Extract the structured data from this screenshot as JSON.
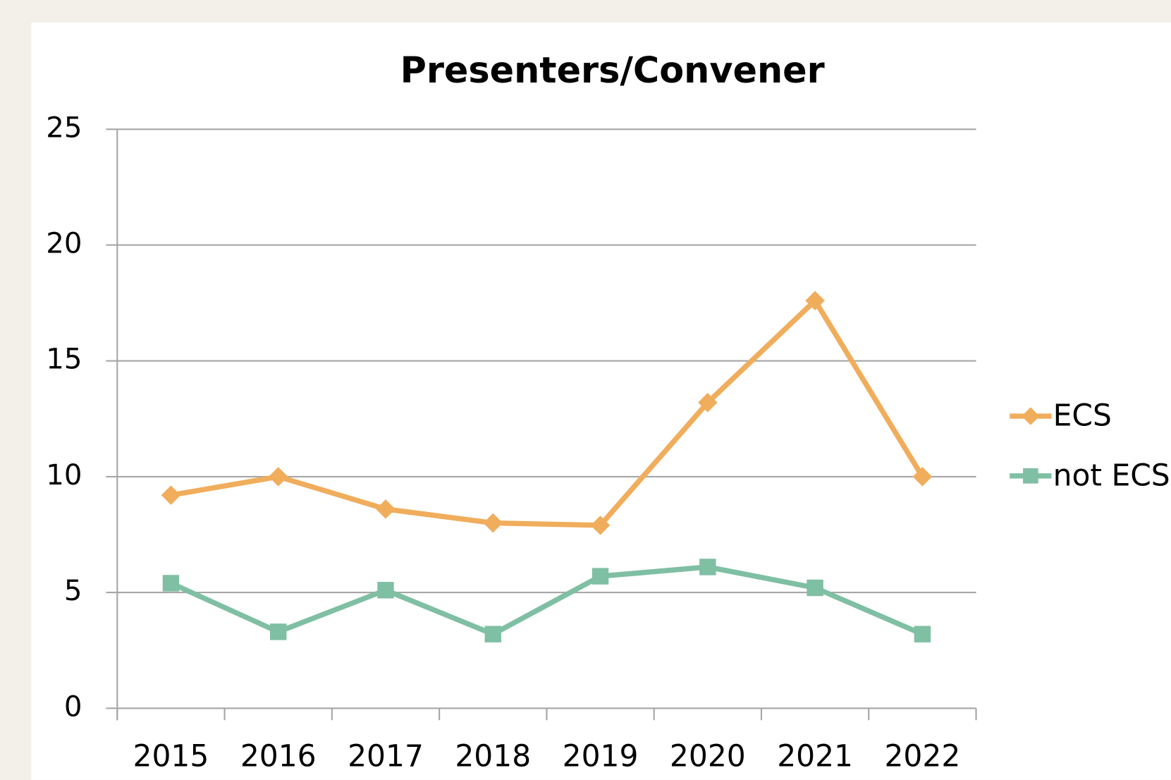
{
  "chart_data": {
    "type": "line",
    "title": "Presenters/Convener",
    "categories": [
      "2015",
      "2016",
      "2017",
      "2018",
      "2019",
      "2020",
      "2021",
      "2022"
    ],
    "series": [
      {
        "name": "ECS",
        "color": "#f0ad5c",
        "marker": "diamond",
        "values": [
          9.2,
          10,
          8.6,
          8,
          7.9,
          13.2,
          17.6,
          10
        ]
      },
      {
        "name": "not ECS",
        "color": "#7fbfa3",
        "marker": "square",
        "values": [
          5.4,
          3.3,
          5.1,
          3.2,
          5.7,
          6.1,
          5.2,
          3.2
        ]
      }
    ],
    "ylim": [
      0,
      25
    ],
    "yticks": [
      0,
      5,
      10,
      15,
      20,
      25
    ],
    "grid": true,
    "legend": "right"
  }
}
